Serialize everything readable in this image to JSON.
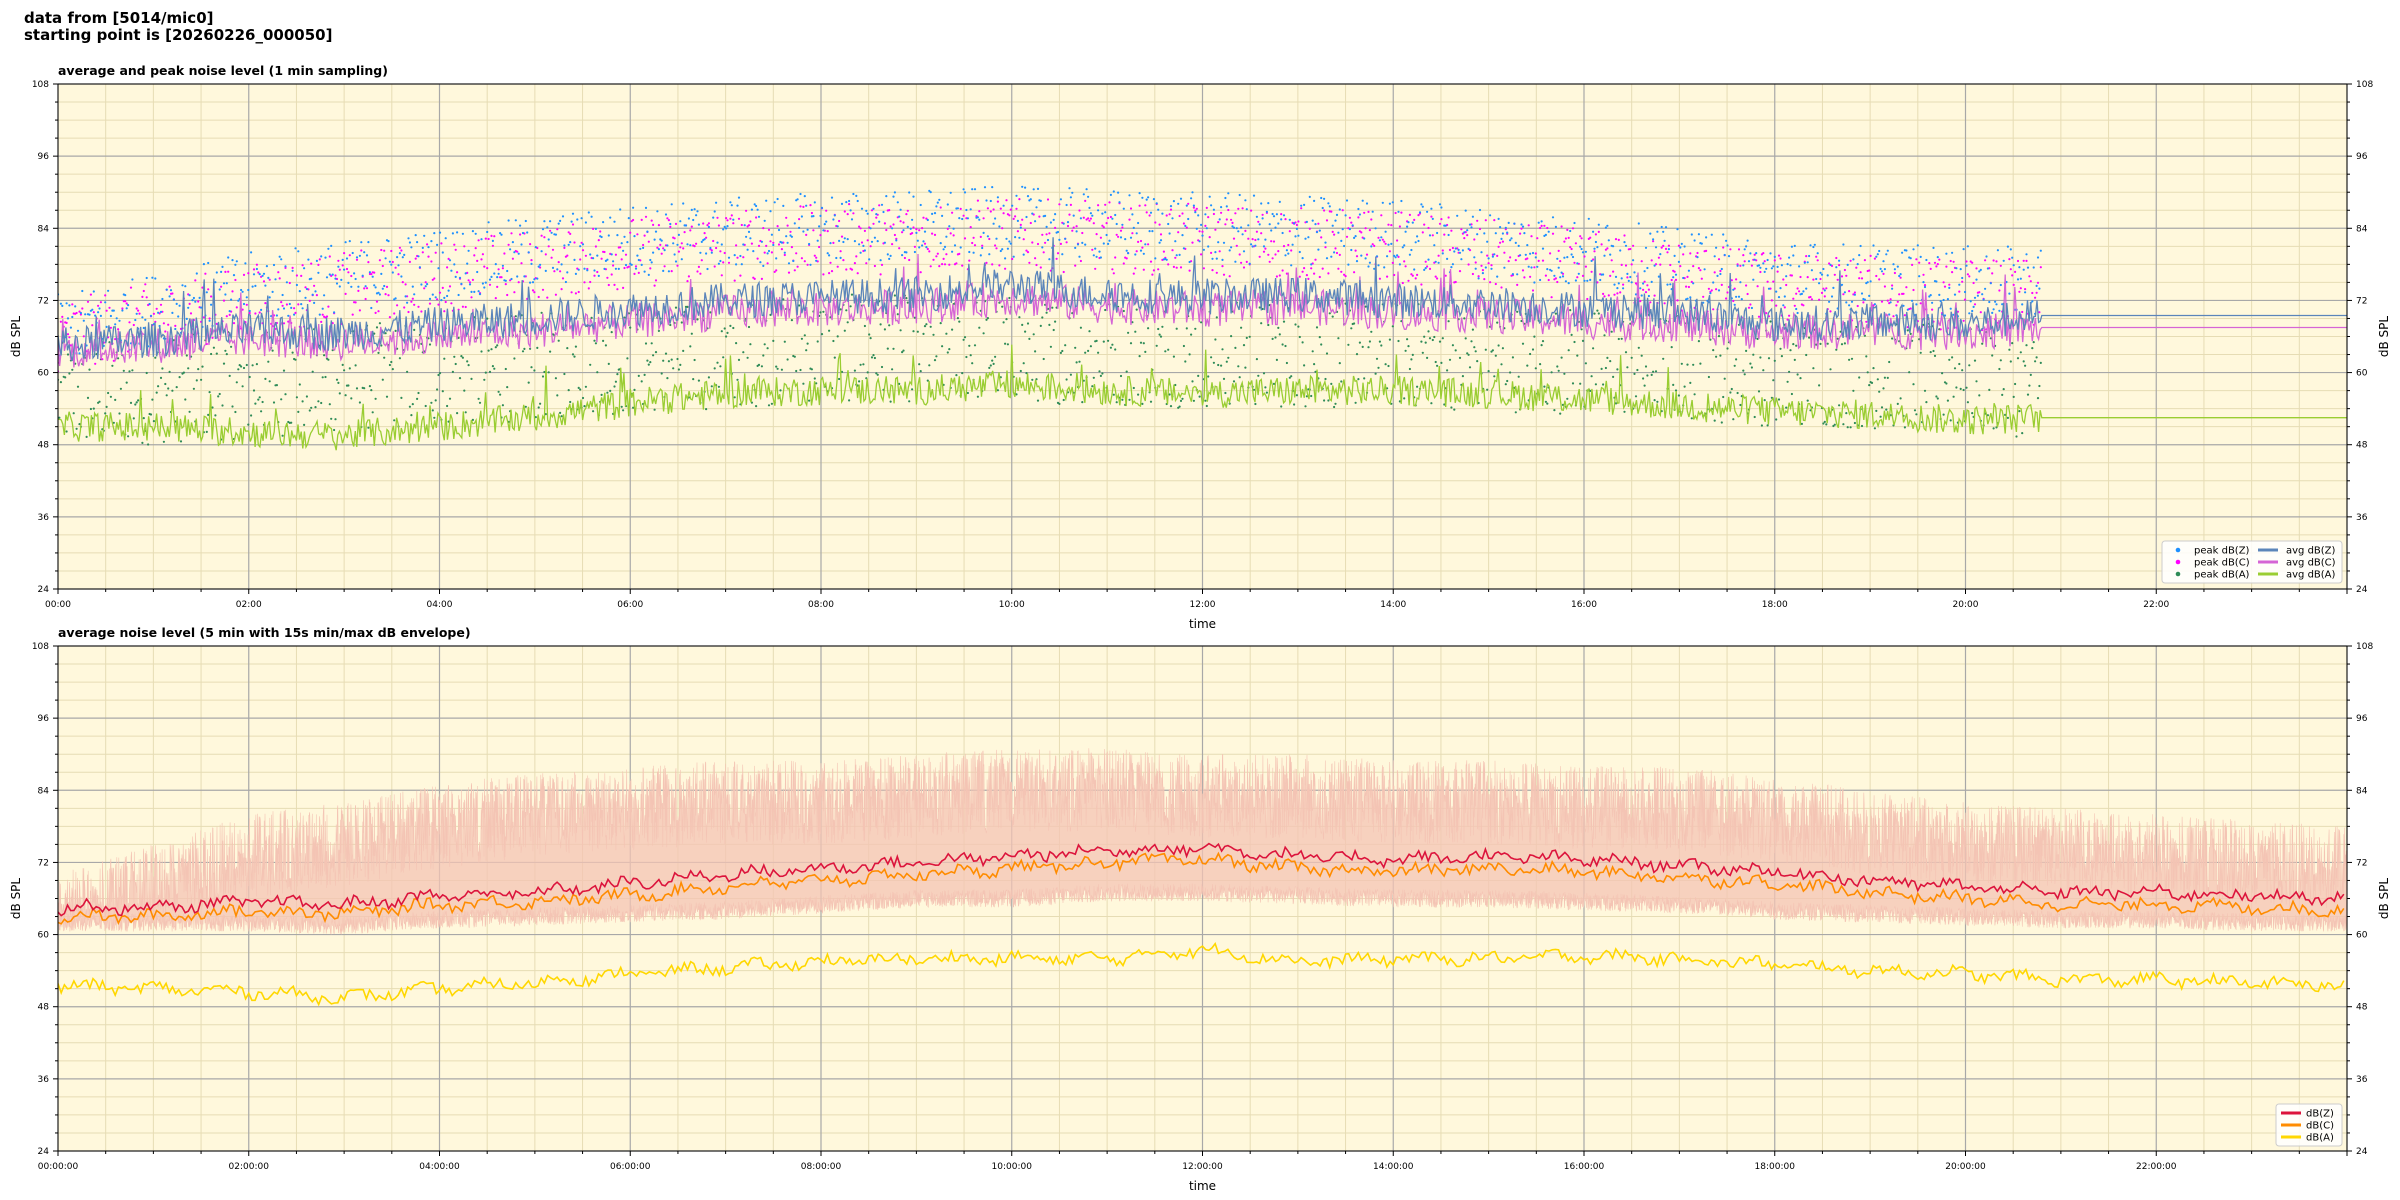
{
  "header": {
    "line1": "data from [5014/mic0]",
    "line2": "starting point is [20260226_000050]"
  },
  "colors": {
    "background": "#fff8dc",
    "grid_major": "#a8a8a8",
    "grid_minor": "#e6dcb4",
    "z": "#5b85ba",
    "c": "#d565d5",
    "a": "#9acd32",
    "peak_z": "#1e90ff",
    "peak_c": "#ff00ff",
    "peak_a": "#2e8b57",
    "z5": "#dc143c",
    "c5": "#ff8c00",
    "a5": "#ffd700",
    "envelope": "#f4c4b4"
  },
  "chart_data": [
    {
      "type": "line",
      "title": "average and peak noise level (1 min sampling)",
      "xlabel": "time",
      "ylabel": "dB SPL",
      "xlim_hours": [
        0,
        24
      ],
      "ylim": [
        24,
        108
      ],
      "yticks": [
        "24",
        "36",
        "48",
        "60",
        "72",
        "84",
        "96",
        "108"
      ],
      "xticks": [
        "00:00",
        "02:00",
        "04:00",
        "06:00",
        "08:00",
        "10:00",
        "12:00",
        "14:00",
        "16:00",
        "18:00",
        "20:00",
        "22:00"
      ],
      "grid": true,
      "legend_placement": "bottom-right",
      "legend": [
        "peak dB(Z)",
        "peak dB(C)",
        "peak dB(A)",
        "avg dB(Z)",
        "avg dB(C)",
        "avg dB(A)"
      ],
      "data_end_hour": 20.8,
      "flat_after_end": {
        "avg dB(Z)": 69.5,
        "avg dB(C)": 67.5,
        "avg dB(A)": 52.5
      },
      "series": [
        {
          "name": "avg dB(Z)",
          "x_hours": [
            0,
            1,
            2,
            3,
            4,
            5,
            6,
            7,
            8,
            9,
            10,
            11,
            12,
            13,
            14,
            15,
            16,
            17,
            18,
            19,
            20,
            20.8
          ],
          "values": [
            64.5,
            65.5,
            67,
            66.5,
            68,
            69,
            70.5,
            72,
            72.5,
            73,
            74.5,
            73,
            72.5,
            73,
            72,
            71.5,
            70.5,
            70,
            68,
            68.5,
            68,
            69.5
          ]
        },
        {
          "name": "avg dB(C)",
          "x_hours": [
            0,
            1,
            2,
            3,
            4,
            5,
            6,
            7,
            8,
            9,
            10,
            11,
            12,
            13,
            14,
            15,
            16,
            17,
            18,
            19,
            20,
            20.8
          ],
          "values": [
            63.5,
            64.5,
            65.5,
            65,
            66,
            67,
            68.5,
            70,
            70.5,
            71,
            72.5,
            71,
            70.5,
            71,
            70,
            69.5,
            68.5,
            68,
            66.5,
            67,
            66.5,
            67.5
          ]
        },
        {
          "name": "avg dB(A)",
          "x_hours": [
            0,
            1,
            2,
            3,
            4,
            5,
            6,
            7,
            8,
            9,
            10,
            11,
            12,
            13,
            14,
            15,
            16,
            17,
            18,
            19,
            20,
            20.8
          ],
          "values": [
            51,
            51,
            50,
            49.5,
            51,
            52.5,
            55,
            56.5,
            57,
            57,
            58,
            57,
            56.5,
            57,
            57,
            56.5,
            55.5,
            54.5,
            53.5,
            53,
            52,
            52.5
          ]
        },
        {
          "name": "peak dB(Z)",
          "x_hours": [
            0,
            2,
            4,
            6,
            8,
            10,
            12,
            14,
            16,
            18,
            20,
            20.8
          ],
          "values": [
            67,
            74,
            78,
            82,
            84,
            85,
            84,
            83,
            80,
            76,
            75,
            75
          ]
        },
        {
          "name": "peak dB(C)",
          "x_hours": [
            0,
            2,
            4,
            6,
            8,
            10,
            12,
            14,
            16,
            18,
            20,
            20.8
          ],
          "values": [
            66,
            72,
            76,
            80,
            82,
            83,
            82,
            81,
            78,
            74,
            73,
            73
          ]
        },
        {
          "name": "peak dB(A)",
          "x_hours": [
            0,
            2,
            4,
            6,
            8,
            10,
            12,
            14,
            16,
            18,
            20,
            20.8
          ],
          "values": [
            56,
            58,
            60,
            62,
            64,
            64,
            63,
            63,
            62,
            60,
            59,
            58
          ]
        }
      ]
    },
    {
      "type": "line",
      "title": "average noise level (5 min with 15s min/max dB envelope)",
      "xlabel": "time",
      "ylabel": "dB SPL",
      "xlim_hours": [
        0,
        24
      ],
      "ylim": [
        24,
        108
      ],
      "yticks": [
        "24",
        "36",
        "48",
        "60",
        "72",
        "84",
        "96",
        "108"
      ],
      "xticks": [
        "00:00:00",
        "02:00:00",
        "04:00:00",
        "06:00:00",
        "08:00:00",
        "10:00:00",
        "12:00:00",
        "14:00:00",
        "16:00:00",
        "18:00:00",
        "20:00:00",
        "22:00:00"
      ],
      "grid": true,
      "legend_placement": "bottom-right",
      "legend": [
        "dB(Z)",
        "dB(C)",
        "dB(A)"
      ],
      "series": [
        {
          "name": "dB(Z)",
          "x_hours": [
            0,
            1,
            2,
            3,
            4,
            5,
            6,
            7,
            8,
            9,
            10,
            11,
            12,
            13,
            14,
            15,
            16,
            17,
            18,
            19,
            20,
            21,
            22,
            23,
            24
          ],
          "values": [
            64.5,
            64.5,
            65.5,
            65,
            66.5,
            67,
            68.5,
            70,
            71,
            72,
            73,
            74,
            74.5,
            73,
            72.5,
            73,
            72.5,
            71.5,
            70.5,
            69,
            68,
            67,
            67,
            66.5,
            66
          ]
        },
        {
          "name": "dB(C)",
          "x_hours": [
            0,
            1,
            2,
            3,
            4,
            5,
            6,
            7,
            8,
            9,
            10,
            11,
            12,
            13,
            14,
            15,
            16,
            17,
            18,
            19,
            20,
            21,
            22,
            23,
            24
          ],
          "values": [
            63,
            63,
            64,
            63.5,
            65,
            65.5,
            66.5,
            68,
            69,
            70,
            71,
            72,
            72.5,
            71,
            70.5,
            71,
            70.5,
            69.5,
            68.5,
            67,
            66,
            65,
            65,
            64.5,
            64
          ]
        },
        {
          "name": "dB(A)",
          "x_hours": [
            0,
            1,
            2,
            3,
            4,
            5,
            6,
            7,
            8,
            9,
            10,
            11,
            12,
            13,
            14,
            15,
            16,
            17,
            18,
            19,
            20,
            21,
            22,
            23,
            24
          ],
          "values": [
            51.5,
            51,
            50.5,
            49.5,
            51,
            52,
            53.5,
            54.5,
            55.5,
            56,
            56,
            56,
            57.5,
            55.5,
            56,
            56,
            56.5,
            56,
            55,
            54,
            53.5,
            52.5,
            52.5,
            52,
            51.5
          ]
        },
        {
          "name": "envelope max",
          "x_hours": [
            0,
            1,
            2,
            3,
            4,
            5,
            6,
            7,
            8,
            9,
            10,
            11,
            12,
            13,
            14,
            15,
            16,
            17,
            18,
            19,
            20,
            21,
            22,
            23,
            24
          ],
          "values": [
            70,
            75,
            80,
            82,
            85,
            87,
            88,
            89,
            89,
            90,
            91,
            91,
            90,
            90,
            89,
            89,
            88,
            88,
            86,
            84,
            82,
            81,
            80,
            79,
            78
          ]
        },
        {
          "name": "envelope min",
          "x_hours": [
            0,
            1,
            2,
            3,
            4,
            5,
            6,
            7,
            8,
            9,
            10,
            11,
            12,
            13,
            14,
            15,
            16,
            17,
            18,
            19,
            20,
            21,
            22,
            23,
            24
          ],
          "values": [
            62,
            62,
            62,
            61.5,
            62.5,
            63,
            63.5,
            64,
            65,
            66,
            66,
            67,
            67,
            66.5,
            66,
            66,
            65.5,
            65,
            64,
            63.5,
            63,
            62.5,
            62.5,
            62,
            62
          ]
        }
      ]
    }
  ]
}
